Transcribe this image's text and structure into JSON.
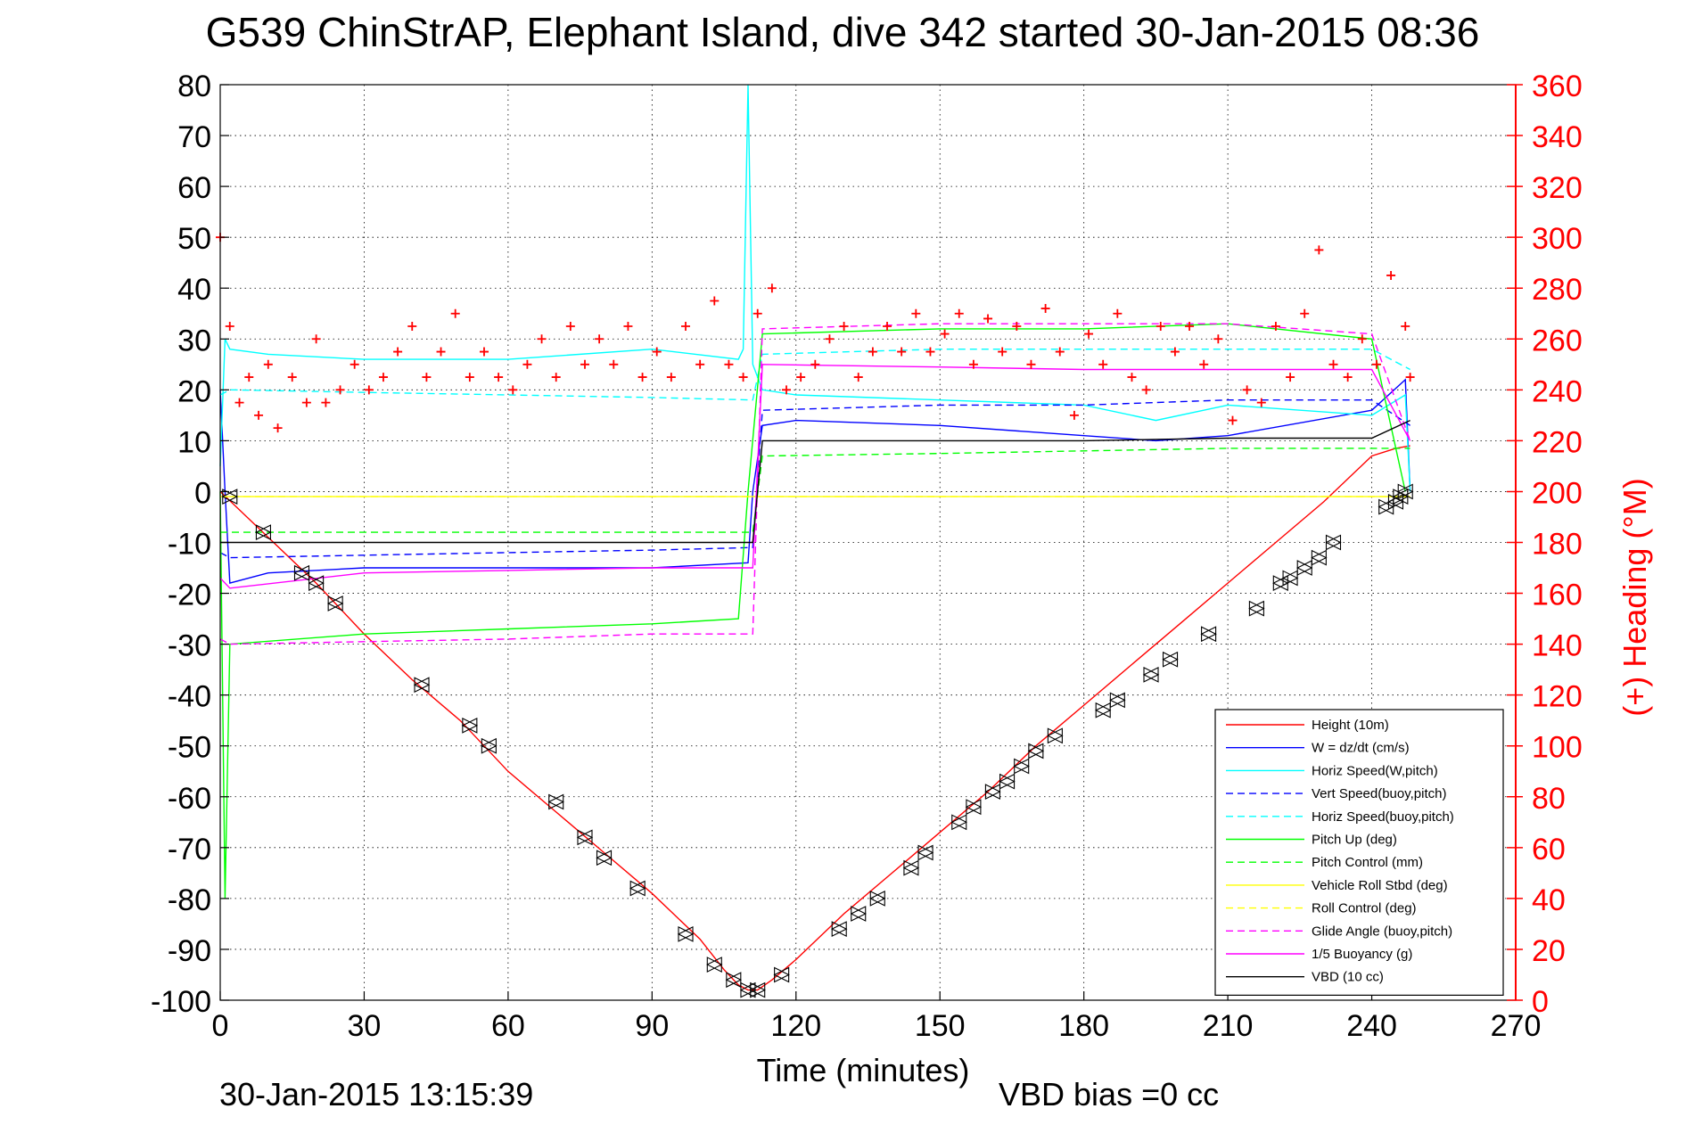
{
  "chart_data": {
    "type": "line",
    "title": "G539 ChinStrAP, Elephant Island, dive 342 started 30-Jan-2015 08:36",
    "xlabel": "Time (minutes)",
    "ylabel_right": "(+) Heading (°M)",
    "xlim": [
      0,
      270
    ],
    "ylim": [
      -100,
      80
    ],
    "ylim_right": [
      0,
      360
    ],
    "x_ticks": [
      0,
      30,
      60,
      90,
      120,
      150,
      180,
      210,
      240,
      270
    ],
    "y_ticks": [
      80,
      70,
      60,
      50,
      40,
      30,
      20,
      10,
      0,
      -10,
      -20,
      -30,
      -40,
      -50,
      -60,
      -70,
      -80,
      -90,
      -100
    ],
    "y_ticks_right": [
      360,
      340,
      320,
      300,
      280,
      260,
      240,
      220,
      200,
      180,
      160,
      140,
      120,
      100,
      80,
      60,
      40,
      20,
      0
    ],
    "grid": true,
    "legend_position": "bottom-right",
    "footer_left": "30-Jan-2015 13:15:39",
    "footer_right": "VBD bias =0 cc",
    "series": [
      {
        "name": "Height (10m)",
        "color": "#ff0000",
        "style": "solid",
        "x": [
          0,
          10,
          20,
          30,
          40,
          50,
          60,
          70,
          80,
          90,
          100,
          105,
          108,
          110,
          112,
          115,
          120,
          130,
          140,
          150,
          160,
          170,
          180,
          190,
          200,
          210,
          220,
          230,
          240,
          245,
          248
        ],
        "y": [
          0,
          -9,
          -18,
          -28,
          -37,
          -45,
          -55,
          -63,
          -71,
          -79,
          -88,
          -94,
          -97,
          -98,
          -98,
          -96,
          -92,
          -83,
          -75,
          -67,
          -59,
          -50,
          -42,
          -34,
          -26,
          -18,
          -10,
          -2,
          7,
          8.5,
          9
        ]
      },
      {
        "name": "W = dz/dt (cm/s)",
        "color": "#0000ff",
        "style": "solid",
        "x": [
          0,
          1,
          2,
          10,
          30,
          60,
          90,
          110,
          111,
          113,
          120,
          150,
          180,
          195,
          210,
          240,
          247,
          248
        ],
        "y": [
          20,
          0,
          -18,
          -16,
          -15,
          -15,
          -15,
          -14,
          0,
          13,
          14,
          13,
          11,
          10,
          11,
          16,
          22,
          0
        ]
      },
      {
        "name": "Horiz Speed(W,pitch)",
        "color": "#00ffff",
        "style": "solid",
        "x": [
          0,
          1,
          2,
          10,
          30,
          60,
          90,
          108,
          109,
          110,
          111,
          113,
          120,
          150,
          180,
          195,
          210,
          240,
          247,
          248
        ],
        "y": [
          5,
          30,
          28,
          27,
          26,
          26,
          28,
          26,
          28,
          80,
          25,
          20,
          19,
          18,
          17,
          14,
          17,
          15,
          19,
          0
        ]
      },
      {
        "name": "Vert Speed(buoy,pitch)",
        "color": "#0000ff",
        "style": "dashed",
        "x": [
          0,
          2,
          30,
          60,
          90,
          111,
          113,
          150,
          180,
          210,
          240,
          248
        ],
        "y": [
          -12,
          -13,
          -12.5,
          -12,
          -11.5,
          -11,
          16,
          17,
          17,
          18,
          18,
          13
        ]
      },
      {
        "name": "Horiz Speed(buoy,pitch)",
        "color": "#00ffff",
        "style": "dashed",
        "x": [
          0,
          2,
          30,
          60,
          90,
          111,
          113,
          150,
          180,
          210,
          240,
          248
        ],
        "y": [
          19,
          20,
          19.5,
          19,
          18.5,
          18,
          27,
          28,
          28,
          28,
          28,
          24
        ]
      },
      {
        "name": "Pitch Up (deg)",
        "color": "#00ff00",
        "style": "solid",
        "x": [
          0,
          1,
          2,
          30,
          60,
          90,
          108,
          110,
          113,
          150,
          180,
          210,
          240,
          247
        ],
        "y": [
          0,
          -80,
          -30,
          -28,
          -27,
          -26,
          -25,
          0,
          31,
          32,
          32,
          33,
          30,
          0
        ]
      },
      {
        "name": "Pitch Control (mm)",
        "color": "#00ff00",
        "style": "dashed",
        "x": [
          0,
          2,
          111,
          113,
          150,
          180,
          210,
          240,
          248
        ],
        "y": [
          -8,
          -8,
          -8,
          7,
          7.5,
          8,
          8.5,
          8.5,
          8.5
        ]
      },
      {
        "name": "Vehicle Roll Stbd (deg)",
        "color": "#ffff00",
        "style": "solid",
        "x": [
          0,
          30,
          60,
          90,
          110,
          111,
          140,
          170,
          200,
          230,
          248
        ],
        "y": [
          -1,
          -1,
          -1,
          -1,
          -1,
          -1,
          -1,
          -1,
          -1,
          -1,
          -1
        ]
      },
      {
        "name": "Roll Control (deg)",
        "color": "#ffff00",
        "style": "dashed",
        "x": [
          0,
          30,
          60,
          90,
          110,
          111,
          140,
          170,
          200,
          230,
          248
        ],
        "y": [
          -1,
          -1,
          -1,
          -1,
          -1,
          -1,
          -1,
          -1,
          -1,
          -1,
          -1
        ]
      },
      {
        "name": "Glide Angle (buoy,pitch)",
        "color": "#ff00ff",
        "style": "dashed",
        "x": [
          0,
          2,
          30,
          60,
          90,
          111,
          113,
          150,
          180,
          210,
          240,
          248
        ],
        "y": [
          -29,
          -30,
          -29.5,
          -29,
          -28,
          -28,
          32,
          33,
          33,
          33,
          31,
          10
        ]
      },
      {
        "name": "1/5 Buoyancy (g)",
        "color": "#ff00ff",
        "style": "solid",
        "x": [
          0,
          2,
          30,
          60,
          90,
          111,
          113,
          150,
          180,
          210,
          240,
          248
        ],
        "y": [
          -17,
          -19,
          -16,
          -15.5,
          -15,
          -15,
          25,
          24.5,
          24,
          24,
          24,
          10
        ]
      },
      {
        "name": "VBD (10 cc)",
        "color": "#000000",
        "style": "solid",
        "x": [
          0,
          2,
          30,
          60,
          90,
          111,
          113,
          150,
          180,
          210,
          240,
          248
        ],
        "y": [
          -10,
          -10,
          -10,
          -10,
          -10,
          -10,
          10,
          10,
          10,
          10.5,
          10.5,
          14
        ]
      }
    ],
    "heading_points": {
      "color": "#ff0000",
      "marker": "+",
      "axis": "right",
      "x": [
        0,
        2,
        4,
        6,
        8,
        10,
        12,
        15,
        18,
        20,
        22,
        25,
        28,
        31,
        34,
        37,
        40,
        43,
        46,
        49,
        52,
        55,
        58,
        61,
        64,
        67,
        70,
        73,
        76,
        79,
        82,
        85,
        88,
        91,
        94,
        97,
        100,
        103,
        106,
        109,
        112,
        115,
        118,
        121,
        124,
        127,
        130,
        133,
        136,
        139,
        142,
        145,
        148,
        151,
        154,
        157,
        160,
        163,
        166,
        169,
        172,
        175,
        178,
        181,
        184,
        187,
        190,
        193,
        196,
        199,
        202,
        205,
        208,
        211,
        214,
        217,
        220,
        223,
        226,
        229,
        232,
        235,
        238,
        241,
        244,
        247,
        248
      ],
      "y": [
        300,
        265,
        235,
        245,
        230,
        250,
        225,
        245,
        235,
        260,
        235,
        240,
        250,
        240,
        245,
        255,
        265,
        245,
        255,
        270,
        245,
        255,
        245,
        240,
        250,
        260,
        245,
        265,
        250,
        260,
        250,
        265,
        245,
        255,
        245,
        265,
        250,
        275,
        250,
        245,
        270,
        280,
        240,
        245,
        250,
        260,
        265,
        245,
        255,
        265,
        255,
        270,
        255,
        262,
        270,
        250,
        268,
        255,
        265,
        250,
        272,
        255,
        230,
        262,
        250,
        270,
        245,
        240,
        265,
        255,
        265,
        250,
        260,
        228,
        240,
        235,
        265,
        245,
        270,
        295,
        250,
        245,
        260,
        250,
        285,
        265,
        245
      ]
    },
    "depth_markers": {
      "marker": "triangle-pair",
      "color": "#000000",
      "x": [
        2,
        9,
        17,
        20,
        24,
        42,
        52,
        56,
        70,
        76,
        80,
        87,
        97,
        103,
        107,
        110,
        112,
        117,
        129,
        133,
        137,
        144,
        147,
        154,
        157,
        161,
        164,
        167,
        170,
        174,
        184,
        187,
        194,
        198,
        206,
        216,
        221,
        223,
        226,
        229,
        232,
        243,
        245,
        246,
        247
      ],
      "y": [
        -1,
        -8,
        -16,
        -18,
        -22,
        -38,
        -46,
        -50,
        -61,
        -68,
        -72,
        -78,
        -87,
        -93,
        -96,
        -98,
        -98,
        -95,
        -86,
        -83,
        -80,
        -74,
        -71,
        -65,
        -62,
        -59,
        -57,
        -54,
        -51,
        -48,
        -43,
        -41,
        -36,
        -33,
        -28,
        -23,
        -18,
        -17,
        -15,
        -13,
        -10,
        -3,
        -2,
        -1,
        0
      ]
    }
  }
}
